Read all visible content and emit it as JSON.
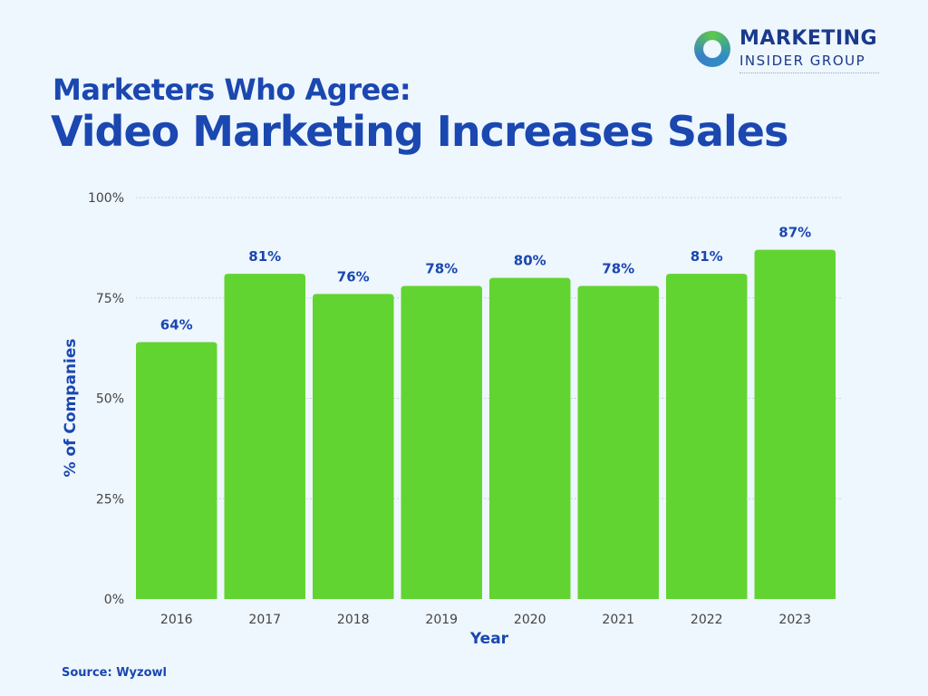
{
  "logo": {
    "line1": "MARKETING",
    "line2": "INSIDER GROUP"
  },
  "title_line1": "Marketers Who Agree:",
  "title_line2": "Video Marketing Increases Sales",
  "source": "Source: Wyzowl",
  "colors": {
    "bar": "#62d431",
    "title": "#1a47b0",
    "label": "#1a47b0",
    "background": "#eef6fe"
  },
  "chart_data": {
    "type": "bar",
    "title": "Marketers Who Agree: Video Marketing Increases Sales",
    "xlabel": "Year",
    "ylabel": "% of Companies",
    "categories": [
      "2016",
      "2017",
      "2018",
      "2019",
      "2020",
      "2021",
      "2022",
      "2023"
    ],
    "values": [
      64,
      81,
      76,
      78,
      80,
      78,
      81,
      87
    ],
    "data_labels": [
      "64%",
      "81%",
      "76%",
      "78%",
      "80%",
      "78%",
      "81%",
      "87%"
    ],
    "ylim": [
      0,
      100
    ],
    "yticks": [
      0,
      25,
      50,
      75,
      100
    ],
    "ytick_labels": [
      "0%",
      "25%",
      "50%",
      "75%",
      "100%"
    ],
    "grid": true
  }
}
